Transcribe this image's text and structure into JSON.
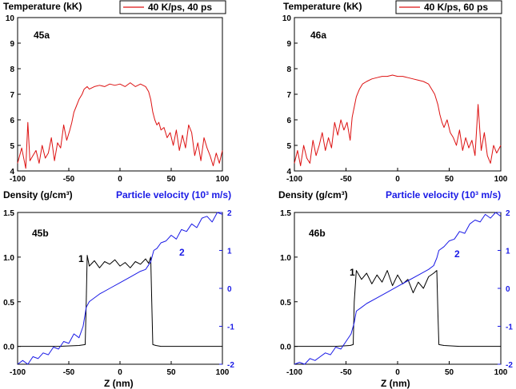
{
  "chart_data": [
    {
      "id": "45a",
      "type": "line",
      "panel_label": "45a",
      "ylabel": "Temperature (kK)",
      "legend": "40 K/ps, 40 ps",
      "xlim": [
        -100,
        100
      ],
      "ylim": [
        4,
        10
      ],
      "x_ticks": [
        "-100",
        "-50",
        "0",
        "50",
        "100"
      ],
      "y_ticks": [
        "4",
        "5",
        "6",
        "7",
        "8",
        "9",
        "10"
      ],
      "series": [
        {
          "name": "40 K/ps, 40 ps",
          "color": "#dd1111",
          "x": [
            -100,
            -96,
            -92,
            -90,
            -88,
            -85,
            -82,
            -79,
            -76,
            -73,
            -70,
            -67,
            -64,
            -61,
            -58,
            -55,
            -52,
            -49,
            -47,
            -45,
            -43,
            -40,
            -37,
            -35,
            -32,
            -30,
            -25,
            -20,
            -15,
            -10,
            -5,
            0,
            5,
            10,
            15,
            20,
            25,
            28,
            30,
            32,
            34,
            36,
            38,
            40,
            43,
            46,
            49,
            52,
            55,
            58,
            61,
            64,
            67,
            70,
            73,
            76,
            79,
            82,
            85,
            88,
            91,
            94,
            97,
            100
          ],
          "values": [
            4.3,
            4.9,
            4.1,
            5.9,
            4.4,
            4.6,
            4.8,
            4.3,
            5.0,
            4.5,
            4.7,
            5.3,
            4.4,
            5.1,
            4.9,
            5.8,
            5.2,
            5.6,
            5.9,
            6.3,
            6.5,
            6.8,
            7.0,
            7.2,
            7.3,
            7.2,
            7.3,
            7.35,
            7.3,
            7.4,
            7.35,
            7.4,
            7.3,
            7.45,
            7.3,
            7.4,
            7.3,
            7.1,
            6.8,
            6.3,
            6.0,
            5.8,
            5.9,
            5.6,
            5.7,
            5.3,
            5.5,
            5.0,
            5.6,
            4.8,
            5.4,
            4.9,
            5.8,
            5.5,
            4.6,
            5.1,
            4.4,
            5.3,
            4.9,
            4.6,
            4.2,
            4.7,
            4.3,
            4.8
          ]
        }
      ]
    },
    {
      "id": "46a",
      "type": "line",
      "panel_label": "46a",
      "ylabel": "Temperature (kK)",
      "legend": "40 K/ps, 60 ps",
      "xlim": [
        -100,
        100
      ],
      "ylim": [
        4,
        10
      ],
      "x_ticks": [
        "-100",
        "-50",
        "0",
        "50",
        "100"
      ],
      "y_ticks": [
        "4",
        "5",
        "6",
        "7",
        "8",
        "9",
        "10"
      ],
      "series": [
        {
          "name": "40 K/ps, 60 ps",
          "color": "#dd1111",
          "x": [
            -100,
            -97,
            -94,
            -91,
            -88,
            -85,
            -82,
            -79,
            -76,
            -73,
            -70,
            -67,
            -64,
            -61,
            -58,
            -55,
            -52,
            -49,
            -46,
            -44,
            -42,
            -40,
            -37,
            -34,
            -30,
            -25,
            -20,
            -15,
            -10,
            -5,
            0,
            5,
            10,
            15,
            20,
            25,
            30,
            33,
            36,
            39,
            41,
            43,
            45,
            48,
            51,
            54,
            57,
            60,
            63,
            66,
            69,
            72,
            75,
            78,
            81,
            84,
            87,
            90,
            93,
            96,
            100
          ],
          "values": [
            4.3,
            4.8,
            4.2,
            5.0,
            4.5,
            4.3,
            5.2,
            4.6,
            5.0,
            5.5,
            4.8,
            5.3,
            4.9,
            5.9,
            5.4,
            6.0,
            5.6,
            5.9,
            5.2,
            6.1,
            6.5,
            6.9,
            7.2,
            7.4,
            7.5,
            7.6,
            7.65,
            7.7,
            7.7,
            7.75,
            7.7,
            7.7,
            7.65,
            7.6,
            7.55,
            7.5,
            7.4,
            7.2,
            7.0,
            6.6,
            6.2,
            5.9,
            5.7,
            6.0,
            5.5,
            5.3,
            5.0,
            5.6,
            4.8,
            5.3,
            4.9,
            5.2,
            4.6,
            6.6,
            4.8,
            5.5,
            4.6,
            4.3,
            5.0,
            4.7,
            5.0
          ]
        }
      ]
    },
    {
      "id": "45b",
      "type": "line",
      "panel_label": "45b",
      "ylabel": "Density (g/cm³)",
      "y2label": "Particle velocity (10³ m/s)",
      "xlabel": "Z (nm)",
      "xlim": [
        -100,
        100
      ],
      "ylim": [
        -0.2,
        1.5
      ],
      "y2lim": [
        -2,
        2
      ],
      "x_ticks": [
        "-100",
        "-50",
        "0",
        "50",
        "100"
      ],
      "y_ticks": [
        "0.0",
        "0.5",
        "1.0",
        "1.5"
      ],
      "y2_ticks": [
        "-2",
        "-1",
        "0",
        "1",
        "2"
      ],
      "curve_labels": {
        "density": "1",
        "velocity": "2"
      },
      "series": [
        {
          "name": "1",
          "axis": "left",
          "color": "#000000",
          "x": [
            -100,
            -80,
            -60,
            -40,
            -34,
            -33,
            -32,
            -30,
            -25,
            -20,
            -15,
            -10,
            -5,
            0,
            5,
            10,
            15,
            20,
            25,
            28,
            30,
            31,
            32,
            35,
            40,
            60,
            80,
            100
          ],
          "values": [
            0.0,
            0.0,
            0.0,
            0.01,
            0.02,
            0.5,
            1.02,
            0.9,
            0.96,
            0.88,
            0.95,
            0.92,
            0.97,
            0.9,
            0.94,
            0.88,
            0.95,
            0.92,
            0.98,
            0.93,
            1.0,
            0.5,
            0.02,
            0.01,
            0.0,
            0.0,
            0.0,
            0.0
          ]
        },
        {
          "name": "2",
          "axis": "right",
          "color": "#1a1ae6",
          "x": [
            -100,
            -95,
            -90,
            -85,
            -80,
            -75,
            -70,
            -65,
            -60,
            -55,
            -50,
            -45,
            -40,
            -36,
            -33,
            -30,
            -25,
            -20,
            -10,
            0,
            10,
            20,
            25,
            30,
            33,
            36,
            40,
            45,
            50,
            55,
            60,
            65,
            70,
            75,
            80,
            85,
            90,
            95,
            100
          ],
          "values": [
            -2.0,
            -1.9,
            -2.1,
            -1.8,
            -1.85,
            -1.7,
            -1.75,
            -1.55,
            -1.6,
            -1.4,
            -1.45,
            -1.2,
            -1.3,
            -1.0,
            -0.5,
            -0.35,
            -0.25,
            -0.15,
            0.0,
            0.15,
            0.3,
            0.45,
            0.5,
            0.7,
            1.0,
            1.05,
            1.2,
            1.25,
            1.4,
            1.3,
            1.55,
            1.5,
            1.7,
            1.6,
            1.85,
            1.9,
            1.75,
            2.0,
            1.95
          ]
        }
      ]
    },
    {
      "id": "46b",
      "type": "line",
      "panel_label": "46b",
      "ylabel": "Density (g/cm³)",
      "y2label": "Particle velocity (10³ m/s)",
      "xlabel": "Z (nm)",
      "xlim": [
        -100,
        100
      ],
      "ylim": [
        -0.2,
        1.5
      ],
      "y2lim": [
        -2,
        2
      ],
      "x_ticks": [
        "-100",
        "-50",
        "0",
        "50",
        "100"
      ],
      "y_ticks": [
        "0.0",
        "0.5",
        "1.0",
        "1.5"
      ],
      "y2_ticks": [
        "-2",
        "-1",
        "0",
        "1",
        "2"
      ],
      "curve_labels": {
        "density": "1",
        "velocity": "2"
      },
      "series": [
        {
          "name": "1",
          "axis": "left",
          "color": "#000000",
          "x": [
            -100,
            -80,
            -60,
            -46,
            -43,
            -42,
            -40,
            -35,
            -30,
            -25,
            -20,
            -15,
            -10,
            -5,
            0,
            5,
            10,
            15,
            20,
            25,
            30,
            35,
            38,
            39,
            40,
            45,
            60,
            80,
            100
          ],
          "values": [
            0.0,
            0.0,
            0.0,
            0.01,
            0.02,
            0.5,
            0.85,
            0.75,
            0.82,
            0.7,
            0.8,
            0.72,
            0.85,
            0.68,
            0.8,
            0.7,
            0.75,
            0.6,
            0.72,
            0.65,
            0.78,
            0.82,
            0.85,
            0.4,
            0.02,
            0.01,
            0.0,
            0.0,
            0.0
          ]
        },
        {
          "name": "2",
          "axis": "right",
          "color": "#1a1ae6",
          "x": [
            -100,
            -95,
            -90,
            -85,
            -80,
            -75,
            -70,
            -65,
            -60,
            -55,
            -50,
            -45,
            -42,
            -40,
            -35,
            -30,
            -20,
            -10,
            0,
            10,
            20,
            30,
            35,
            38,
            40,
            45,
            50,
            55,
            60,
            65,
            70,
            75,
            80,
            85,
            90,
            95,
            100
          ],
          "values": [
            -2.1,
            -1.95,
            -2.05,
            -1.85,
            -1.9,
            -1.8,
            -1.7,
            -1.75,
            -1.55,
            -1.6,
            -1.4,
            -1.2,
            -0.9,
            -0.6,
            -0.5,
            -0.4,
            -0.25,
            -0.1,
            0.05,
            0.2,
            0.35,
            0.5,
            0.6,
            0.8,
            1.0,
            1.1,
            1.25,
            1.3,
            1.5,
            1.45,
            1.7,
            1.8,
            1.75,
            1.95,
            1.85,
            2.0,
            1.9
          ]
        }
      ]
    }
  ]
}
